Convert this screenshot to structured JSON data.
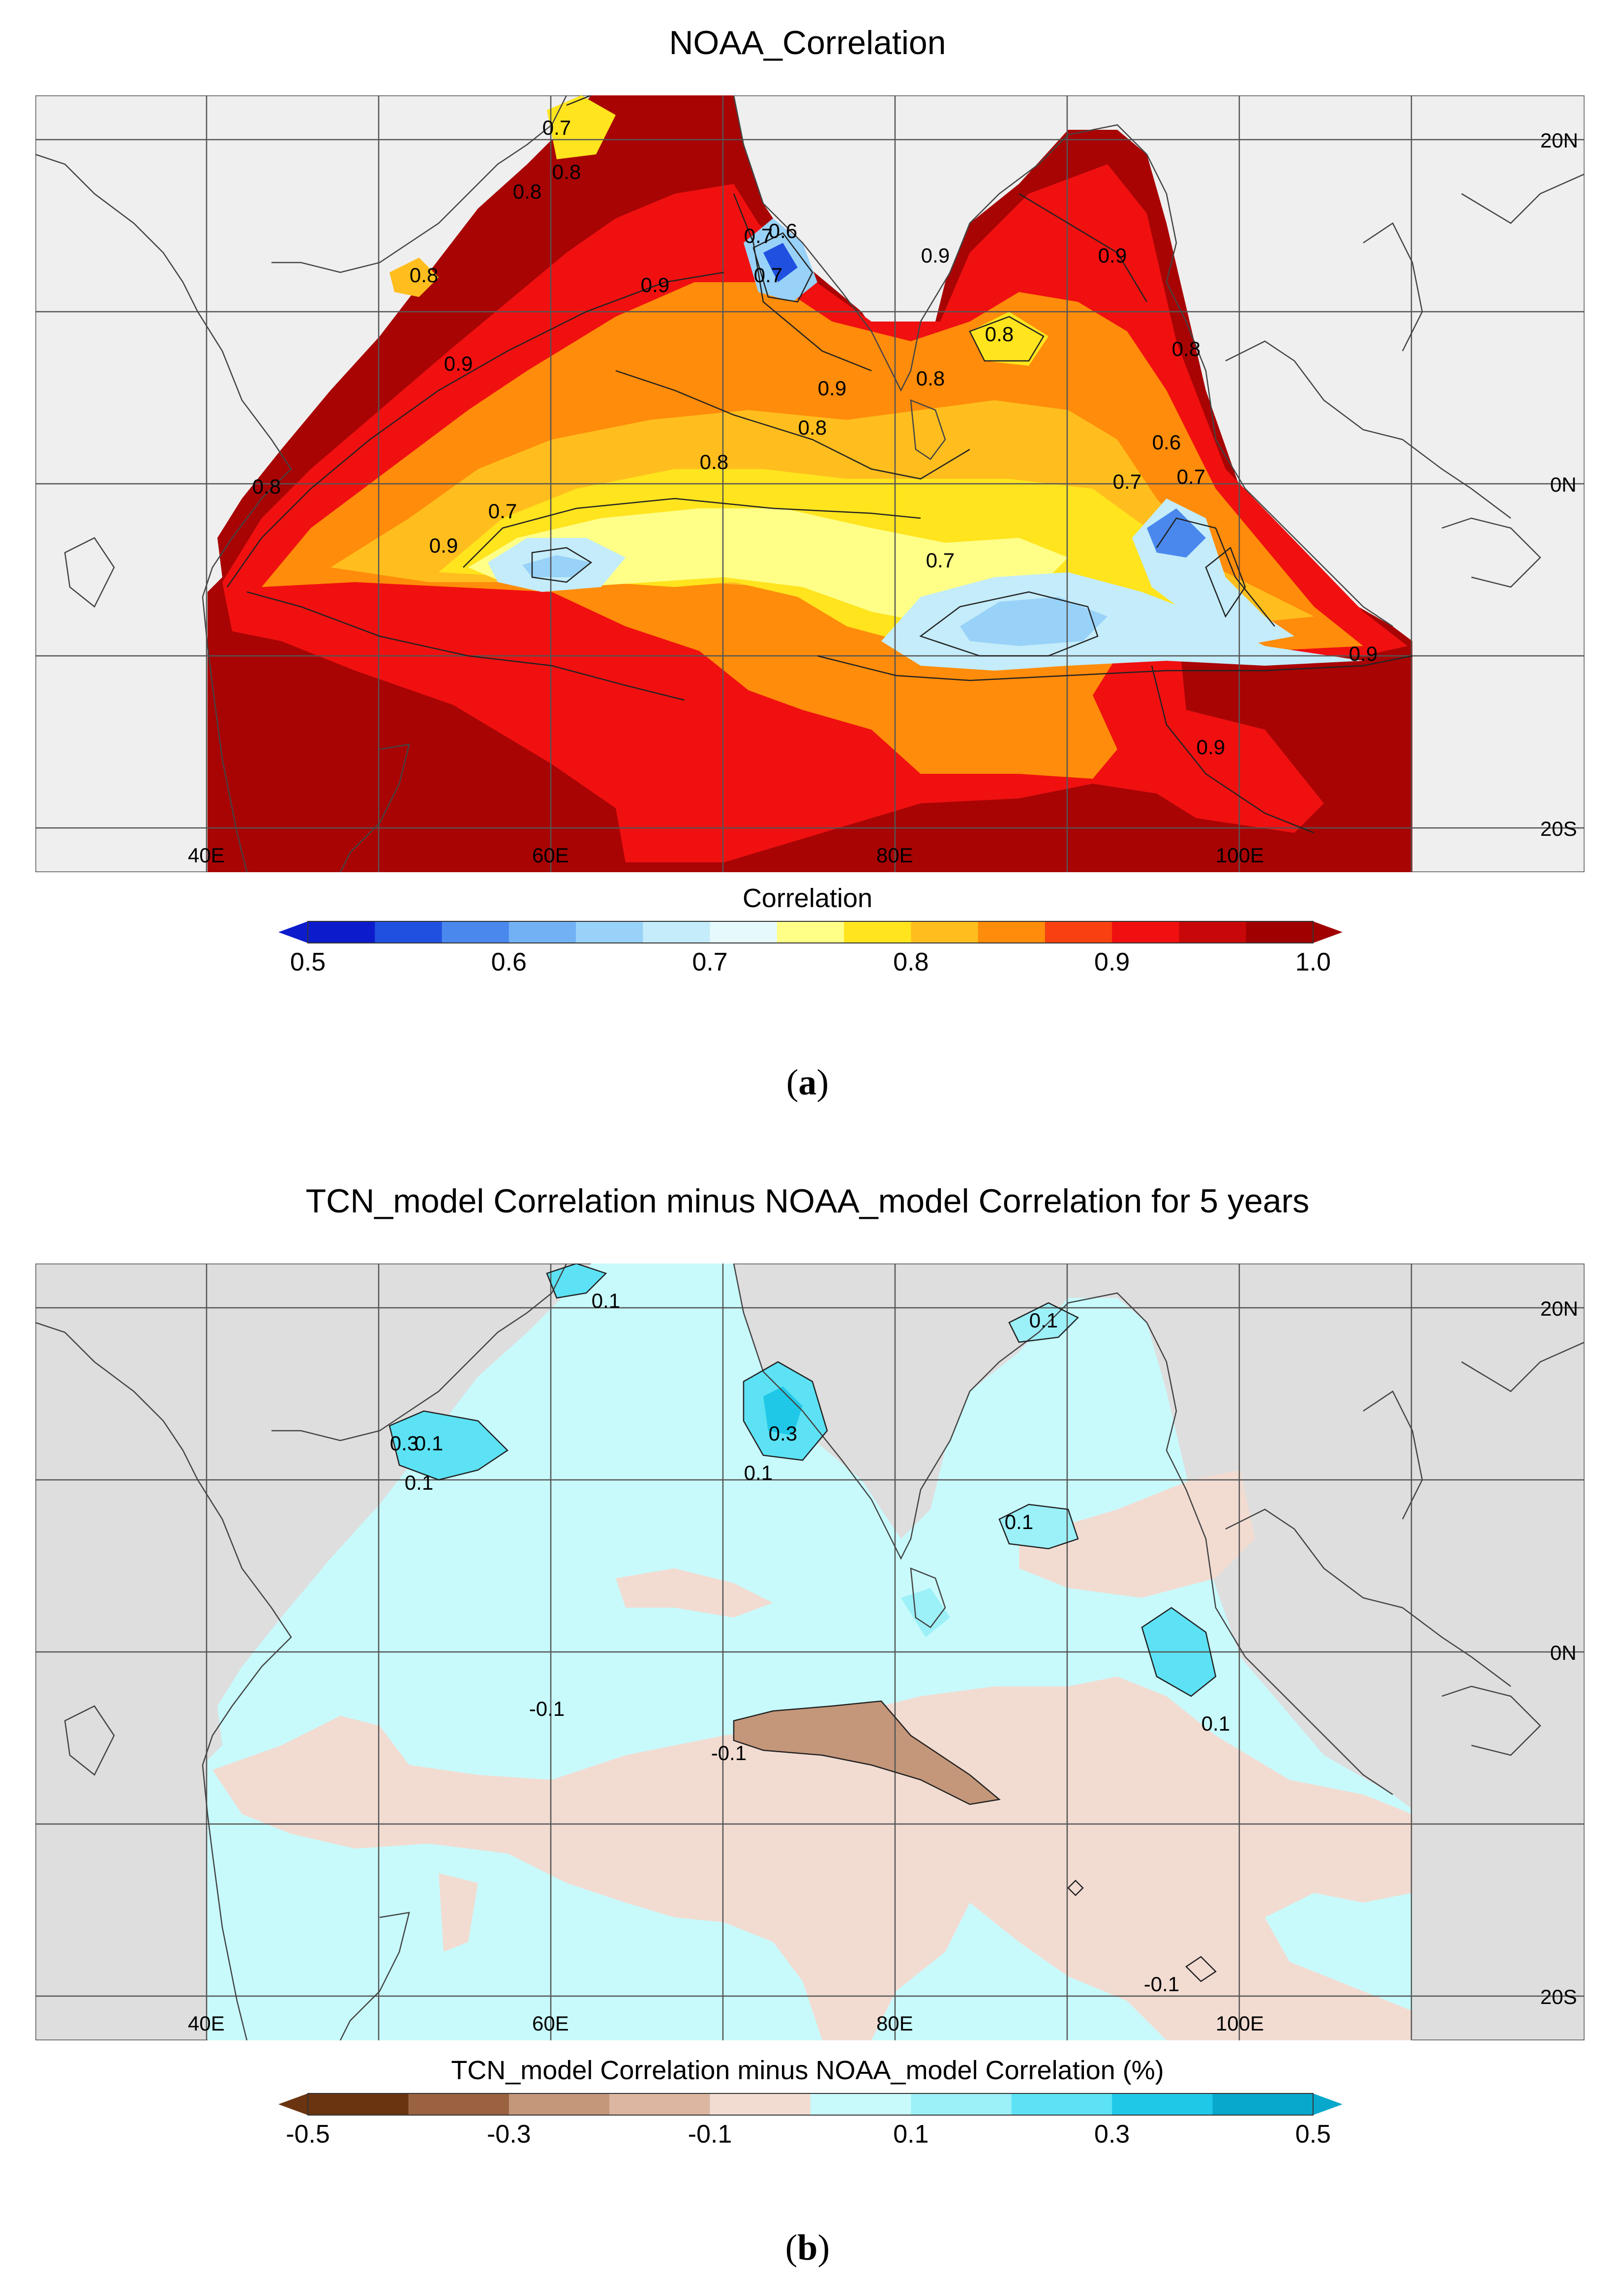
{
  "panels": [
    {
      "title": "NOAA_Correlation",
      "caption_letter": "a",
      "colorbar_title": "Correlation",
      "colorbar_ticks": [
        "0.5",
        "0.6",
        "0.7",
        "0.8",
        "0.9",
        "1.0"
      ],
      "colorbar_colors": [
        "#0c1ccc",
        "#2050e0",
        "#4a88ee",
        "#72b2f4",
        "#98d2f8",
        "#c4ecfa",
        "#e6fafc",
        "#ffff88",
        "#ffe41e",
        "#ffbe1e",
        "#ff8c0a",
        "#f84010",
        "#f01010",
        "#c80808",
        "#a00000"
      ],
      "under_color": "#0c1ccc",
      "over_color": "#a00000",
      "land_color": "#efefef",
      "lon_labels": [
        "40E",
        "60E",
        "80E",
        "100E"
      ],
      "lat_labels": [
        "20N",
        "0N",
        "20S"
      ],
      "contour_labels": [
        "0.7",
        "0.8",
        "0.8",
        "0.8",
        "0.7",
        "0.6",
        "0.7",
        "0.8",
        "0.9",
        "0.9",
        "0.9",
        "0.9",
        "0.8",
        "0.8",
        "0.8",
        "0.8",
        "0.9",
        "0.7",
        "0.9",
        "0.6",
        "0.7",
        "0.7",
        "0.7",
        "0.9",
        "0.9",
        "0.8"
      ]
    },
    {
      "title": "TCN_model Correlation minus NOAA_model Correlation for 5 years",
      "caption_letter": "b",
      "colorbar_title": "TCN_model Correlation minus NOAA_model Correlation (%)",
      "colorbar_ticks": [
        "-0.5",
        "-0.3",
        "-0.1",
        "0.1",
        "0.3",
        "0.5"
      ],
      "colorbar_colors": [
        "#6a3410",
        "#9a6240",
        "#c4967a",
        "#dcb6a0",
        "#f2dcd2",
        "#c8fafc",
        "#9cf0f8",
        "#5ce2f4",
        "#20c8e8",
        "#08a8cc"
      ],
      "under_color": "#6a3410",
      "over_color": "#08a8cc",
      "land_color": "#dedede",
      "lon_labels": [
        "40E",
        "60E",
        "80E",
        "100E"
      ],
      "lat_labels": [
        "20N",
        "0N",
        "20S"
      ],
      "contour_labels": [
        "0.1",
        "0.1",
        "0.3",
        "0.1",
        "0.1",
        "0.3",
        "0.1",
        "0.1",
        "-0.1",
        "-0.1",
        "0.1",
        "-0.1"
      ]
    }
  ]
}
